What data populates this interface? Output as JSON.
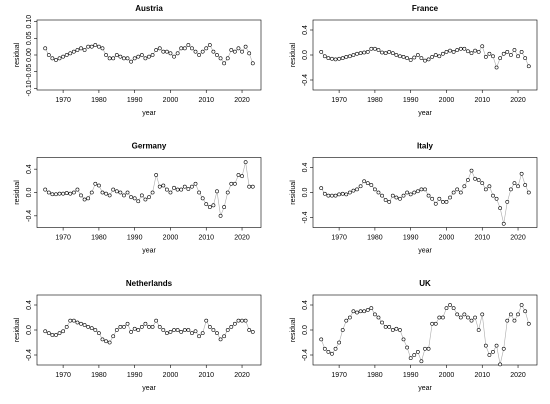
{
  "chart_data": [
    {
      "type": "line",
      "title": "Austria",
      "xlabel": "year",
      "ylabel": "residual",
      "color": "#000000",
      "line_color": "#aaaaaa",
      "xlim": [
        1962.7,
        2025.3
      ],
      "xticks": [
        1970,
        1980,
        1990,
        2000,
        2010,
        2020
      ],
      "ylim": [
        -0.105,
        0.105
      ],
      "yticks": [
        {
          "value": -0.1,
          "label": "-0.10"
        },
        {
          "value": -0.05,
          "label": "-0.05"
        },
        {
          "value": 0,
          "label": "0.00"
        },
        {
          "value": 0.05,
          "label": "0.05"
        },
        {
          "value": 0.1,
          "label": "0.10"
        }
      ],
      "x": [
        1965,
        1966,
        1967,
        1968,
        1969,
        1970,
        1971,
        1972,
        1973,
        1974,
        1975,
        1976,
        1977,
        1978,
        1979,
        1980,
        1981,
        1982,
        1983,
        1984,
        1985,
        1986,
        1987,
        1988,
        1989,
        1990,
        1991,
        1992,
        1993,
        1994,
        1995,
        1996,
        1997,
        1998,
        1999,
        2000,
        2001,
        2002,
        2003,
        2004,
        2005,
        2006,
        2007,
        2008,
        2009,
        2010,
        2011,
        2012,
        2013,
        2014,
        2015,
        2016,
        2017,
        2018,
        2019,
        2020,
        2021,
        2022,
        2023
      ],
      "values": [
        0.02,
        0.0,
        -0.01,
        -0.015,
        -0.01,
        -0.005,
        0.0,
        0.005,
        0.01,
        0.015,
        0.02,
        0.015,
        0.025,
        0.025,
        0.03,
        0.025,
        0.02,
        0.0,
        -0.01,
        -0.01,
        0.0,
        -0.005,
        -0.01,
        -0.01,
        -0.02,
        -0.01,
        -0.005,
        0.0,
        -0.01,
        -0.005,
        0.0,
        0.015,
        0.02,
        0.01,
        0.01,
        0.005,
        -0.005,
        0.005,
        0.02,
        0.02,
        0.03,
        0.02,
        0.01,
        0.0,
        0.01,
        0.02,
        0.03,
        0.01,
        0.0,
        -0.01,
        -0.025,
        -0.01,
        0.015,
        0.01,
        0.02,
        0.01,
        0.025,
        0.005,
        -0.025
      ]
    },
    {
      "type": "line",
      "title": "France",
      "xlabel": "year",
      "ylabel": "residual",
      "color": "#000000",
      "line_color": "#aaaaaa",
      "xlim": [
        1962.7,
        2025.3
      ],
      "xticks": [
        1970,
        1980,
        1990,
        2000,
        2010,
        2020
      ],
      "ylim": [
        -0.56,
        0.56
      ],
      "yticks": [
        -0.4,
        {
          "value": 0,
          "label": "0.0"
        },
        0.4
      ],
      "x": [
        1965,
        1966,
        1967,
        1968,
        1969,
        1970,
        1971,
        1972,
        1973,
        1974,
        1975,
        1976,
        1977,
        1978,
        1979,
        1980,
        1981,
        1982,
        1983,
        1984,
        1985,
        1986,
        1987,
        1988,
        1989,
        1990,
        1991,
        1992,
        1993,
        1994,
        1995,
        1996,
        1997,
        1998,
        1999,
        2000,
        2001,
        2002,
        2003,
        2004,
        2005,
        2006,
        2007,
        2008,
        2009,
        2010,
        2011,
        2012,
        2013,
        2014,
        2015,
        2016,
        2017,
        2018,
        2019,
        2020,
        2021,
        2022,
        2023
      ],
      "values": [
        0.05,
        -0.02,
        -0.05,
        -0.06,
        -0.07,
        -0.06,
        -0.05,
        -0.03,
        -0.02,
        0.0,
        0.02,
        0.03,
        0.04,
        0.05,
        0.1,
        0.1,
        0.08,
        0.04,
        0.03,
        0.05,
        0.03,
        0.0,
        -0.02,
        -0.03,
        -0.05,
        -0.08,
        -0.04,
        0.0,
        -0.05,
        -0.09,
        -0.07,
        -0.03,
        0.0,
        -0.02,
        0.02,
        0.05,
        0.07,
        0.05,
        0.08,
        0.1,
        0.1,
        0.06,
        0.03,
        0.07,
        0.05,
        0.14,
        -0.03,
        0.02,
        -0.02,
        -0.2,
        -0.05,
        0.02,
        0.05,
        0.0,
        0.08,
        -0.02,
        0.05,
        -0.05,
        -0.18
      ]
    },
    {
      "type": "line",
      "title": "Germany",
      "xlabel": "year",
      "ylabel": "residual",
      "color": "#000000",
      "line_color": "#aaaaaa",
      "xlim": [
        1962.7,
        2025.3
      ],
      "xticks": [
        1970,
        1980,
        1990,
        2000,
        2010,
        2020
      ],
      "ylim": [
        -0.6,
        0.6
      ],
      "yticks": [
        -0.4,
        {
          "value": 0,
          "label": "0.0"
        },
        0.4
      ],
      "x": [
        1965,
        1966,
        1967,
        1968,
        1969,
        1970,
        1971,
        1972,
        1973,
        1974,
        1975,
        1976,
        1977,
        1978,
        1979,
        1980,
        1981,
        1982,
        1983,
        1984,
        1985,
        1986,
        1987,
        1988,
        1989,
        1990,
        1991,
        1992,
        1993,
        1994,
        1995,
        1996,
        1997,
        1998,
        1999,
        2000,
        2001,
        2002,
        2003,
        2004,
        2005,
        2006,
        2007,
        2008,
        2009,
        2010,
        2011,
        2012,
        2013,
        2014,
        2015,
        2016,
        2017,
        2018,
        2019,
        2020,
        2021,
        2022,
        2023
      ],
      "values": [
        0.05,
        0.0,
        -0.03,
        -0.03,
        -0.02,
        -0.02,
        -0.01,
        -0.02,
        0.0,
        0.05,
        -0.05,
        -0.12,
        -0.1,
        0.0,
        0.15,
        0.12,
        0.0,
        -0.02,
        -0.05,
        0.05,
        0.02,
        0.0,
        -0.05,
        0.0,
        -0.08,
        -0.1,
        -0.15,
        -0.05,
        -0.12,
        -0.08,
        0.0,
        0.3,
        0.1,
        0.12,
        0.05,
        0.0,
        0.08,
        0.05,
        0.05,
        0.1,
        0.06,
        0.1,
        0.15,
        0.0,
        -0.1,
        -0.2,
        -0.25,
        -0.22,
        0.02,
        -0.4,
        -0.25,
        0.0,
        0.15,
        0.15,
        0.3,
        0.28,
        0.52,
        0.1,
        0.1
      ]
    },
    {
      "type": "line",
      "title": "Italy",
      "xlabel": "year",
      "ylabel": "residual",
      "color": "#000000",
      "line_color": "#aaaaaa",
      "xlim": [
        1962.7,
        2025.3
      ],
      "xticks": [
        1970,
        1980,
        1990,
        2000,
        2010,
        2020
      ],
      "ylim": [
        -0.56,
        0.56
      ],
      "yticks": [
        -0.4,
        {
          "value": 0,
          "label": "0.0"
        },
        0.4
      ],
      "x": [
        1965,
        1966,
        1967,
        1968,
        1969,
        1970,
        1971,
        1972,
        1973,
        1974,
        1975,
        1976,
        1977,
        1978,
        1979,
        1980,
        1981,
        1982,
        1983,
        1984,
        1985,
        1986,
        1987,
        1988,
        1989,
        1990,
        1991,
        1992,
        1993,
        1994,
        1995,
        1996,
        1997,
        1998,
        1999,
        2000,
        2001,
        2002,
        2003,
        2004,
        2005,
        2006,
        2007,
        2008,
        2009,
        2010,
        2011,
        2012,
        2013,
        2014,
        2015,
        2016,
        2017,
        2018,
        2019,
        2020,
        2021,
        2022,
        2023
      ],
      "values": [
        0.07,
        -0.02,
        -0.05,
        -0.05,
        -0.05,
        -0.03,
        -0.02,
        -0.03,
        0.0,
        0.03,
        0.05,
        0.1,
        0.18,
        0.15,
        0.12,
        0.05,
        0.0,
        -0.05,
        -0.12,
        -0.15,
        -0.05,
        -0.08,
        -0.1,
        -0.05,
        0.0,
        -0.03,
        0.0,
        0.02,
        0.05,
        0.05,
        -0.05,
        -0.1,
        -0.18,
        -0.1,
        -0.15,
        -0.15,
        -0.08,
        0.0,
        0.05,
        0.0,
        0.1,
        0.2,
        0.35,
        0.22,
        0.2,
        0.15,
        0.05,
        0.1,
        -0.05,
        -0.1,
        -0.25,
        -0.5,
        -0.15,
        0.05,
        0.15,
        0.1,
        0.3,
        0.12,
        0.0
      ]
    },
    {
      "type": "line",
      "title": "Netherlands",
      "xlabel": "year",
      "ylabel": "residual",
      "color": "#000000",
      "line_color": "#aaaaaa",
      "xlim": [
        1962.7,
        2025.3
      ],
      "xticks": [
        1970,
        1980,
        1990,
        2000,
        2010,
        2020
      ],
      "ylim": [
        -0.56,
        0.56
      ],
      "yticks": [
        -0.4,
        {
          "value": 0,
          "label": "0.0"
        },
        0.4
      ],
      "x": [
        1965,
        1966,
        1967,
        1968,
        1969,
        1970,
        1971,
        1972,
        1973,
        1974,
        1975,
        1976,
        1977,
        1978,
        1979,
        1980,
        1981,
        1982,
        1983,
        1984,
        1985,
        1986,
        1987,
        1988,
        1989,
        1990,
        1991,
        1992,
        1993,
        1994,
        1995,
        1996,
        1997,
        1998,
        1999,
        2000,
        2001,
        2002,
        2003,
        2004,
        2005,
        2006,
        2007,
        2008,
        2009,
        2010,
        2011,
        2012,
        2013,
        2014,
        2015,
        2016,
        2017,
        2018,
        2019,
        2020,
        2021,
        2022,
        2023
      ],
      "values": [
        -0.02,
        -0.05,
        -0.08,
        -0.08,
        -0.05,
        -0.02,
        0.05,
        0.15,
        0.15,
        0.12,
        0.1,
        0.08,
        0.05,
        0.03,
        0.0,
        -0.05,
        -0.15,
        -0.18,
        -0.2,
        -0.1,
        0.0,
        0.05,
        0.05,
        0.1,
        -0.03,
        0.02,
        0.0,
        0.05,
        0.1,
        0.05,
        0.05,
        0.15,
        0.05,
        0.0,
        -0.05,
        -0.03,
        0.0,
        0.0,
        -0.03,
        0.0,
        0.0,
        -0.05,
        -0.02,
        -0.1,
        -0.05,
        0.15,
        0.05,
        0.0,
        -0.05,
        -0.15,
        -0.1,
        0.0,
        0.05,
        0.1,
        0.15,
        0.15,
        0.15,
        0.0,
        -0.03
      ]
    },
    {
      "type": "line",
      "title": "UK",
      "xlabel": "year",
      "ylabel": "residual",
      "color": "#000000",
      "line_color": "#aaaaaa",
      "xlim": [
        1962.7,
        2025.3
      ],
      "xticks": [
        1970,
        1980,
        1990,
        2000,
        2010,
        2020
      ],
      "ylim": [
        -0.56,
        0.56
      ],
      "yticks": [
        -0.4,
        {
          "value": 0,
          "label": "0.0"
        },
        0.4
      ],
      "x": [
        1965,
        1966,
        1967,
        1968,
        1969,
        1970,
        1971,
        1972,
        1973,
        1974,
        1975,
        1976,
        1977,
        1978,
        1979,
        1980,
        1981,
        1982,
        1983,
        1984,
        1985,
        1986,
        1987,
        1988,
        1989,
        1990,
        1991,
        1992,
        1993,
        1994,
        1995,
        1996,
        1997,
        1998,
        1999,
        2000,
        2001,
        2002,
        2003,
        2004,
        2005,
        2006,
        2007,
        2008,
        2009,
        2010,
        2011,
        2012,
        2013,
        2014,
        2015,
        2016,
        2017,
        2018,
        2019,
        2020,
        2021,
        2022,
        2023
      ],
      "values": [
        -0.15,
        -0.3,
        -0.35,
        -0.38,
        -0.3,
        -0.2,
        0.0,
        0.15,
        0.2,
        0.3,
        0.28,
        0.3,
        0.3,
        0.32,
        0.35,
        0.25,
        0.2,
        0.12,
        0.05,
        0.05,
        0.0,
        0.02,
        0.0,
        -0.15,
        -0.28,
        -0.45,
        -0.4,
        -0.35,
        -0.5,
        -0.3,
        -0.3,
        0.1,
        0.1,
        0.2,
        0.2,
        0.35,
        0.4,
        0.35,
        0.25,
        0.2,
        0.25,
        0.2,
        0.15,
        0.2,
        0.0,
        0.25,
        -0.25,
        -0.4,
        -0.35,
        -0.25,
        -0.55,
        -0.3,
        0.15,
        0.25,
        0.15,
        0.25,
        0.4,
        0.3,
        0.1
      ]
    }
  ]
}
